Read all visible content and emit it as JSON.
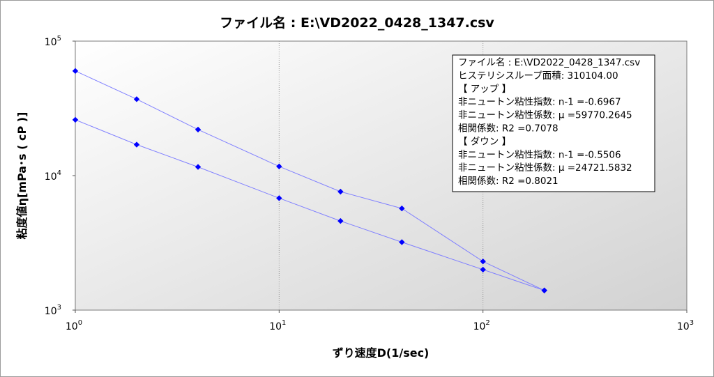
{
  "chart_data": {
    "type": "line",
    "title": "ファイル名 : E:\\VD2022_0428_1347.csv",
    "xlabel": "ずり速度D(1/sec)",
    "ylabel": "粘度値η[mPa･s ( cP )]",
    "x_scale": "log",
    "y_scale": "log",
    "xlim": [
      1,
      1000
    ],
    "ylim": [
      1000,
      100000
    ],
    "x_ticks": [
      {
        "base": "10",
        "exp": "0",
        "value": 1
      },
      {
        "base": "10",
        "exp": "1",
        "value": 10
      },
      {
        "base": "10",
        "exp": "2",
        "value": 100
      },
      {
        "base": "10",
        "exp": "3",
        "value": 1000
      }
    ],
    "y_ticks": [
      {
        "base": "10",
        "exp": "3",
        "value": 1000
      },
      {
        "base": "10",
        "exp": "4",
        "value": 10000
      },
      {
        "base": "10",
        "exp": "5",
        "value": 100000
      }
    ],
    "grid": "vertical dotted at decades",
    "series": [
      {
        "x": [
          1,
          2,
          4,
          10,
          20,
          40,
          100,
          200
        ],
        "y": [
          60000,
          37000,
          22000,
          11700,
          7600,
          5700,
          2300,
          1400
        ],
        "color": "#0000ff"
      },
      {
        "x": [
          1,
          2,
          4,
          10,
          20,
          40,
          100,
          200
        ],
        "y": [
          26000,
          17000,
          11600,
          6800,
          4600,
          3200,
          2000,
          1400
        ],
        "color": "#0000ff"
      }
    ],
    "line_color": "#8080ff",
    "marker_color": "#0000ff",
    "legend_placement": "top-right",
    "annotation_lines": [
      "ファイル名 :  E:\\VD2022_0428_1347.csv",
      "ヒステリシスループ面積: 310104.00",
      "【 アップ 】",
      "非ニュートン粘性指数: n-1 =-0.6967",
      "非ニュートン粘性係数: μ =59770.2645",
      "相関係数: R2 =0.7078",
      "【 ダウン 】",
      "非ニュートン粘性指数: n-1 =-0.5506",
      "非ニュートン粘性係数: μ =24721.5832",
      "相関係数: R2 =0.8021"
    ]
  }
}
